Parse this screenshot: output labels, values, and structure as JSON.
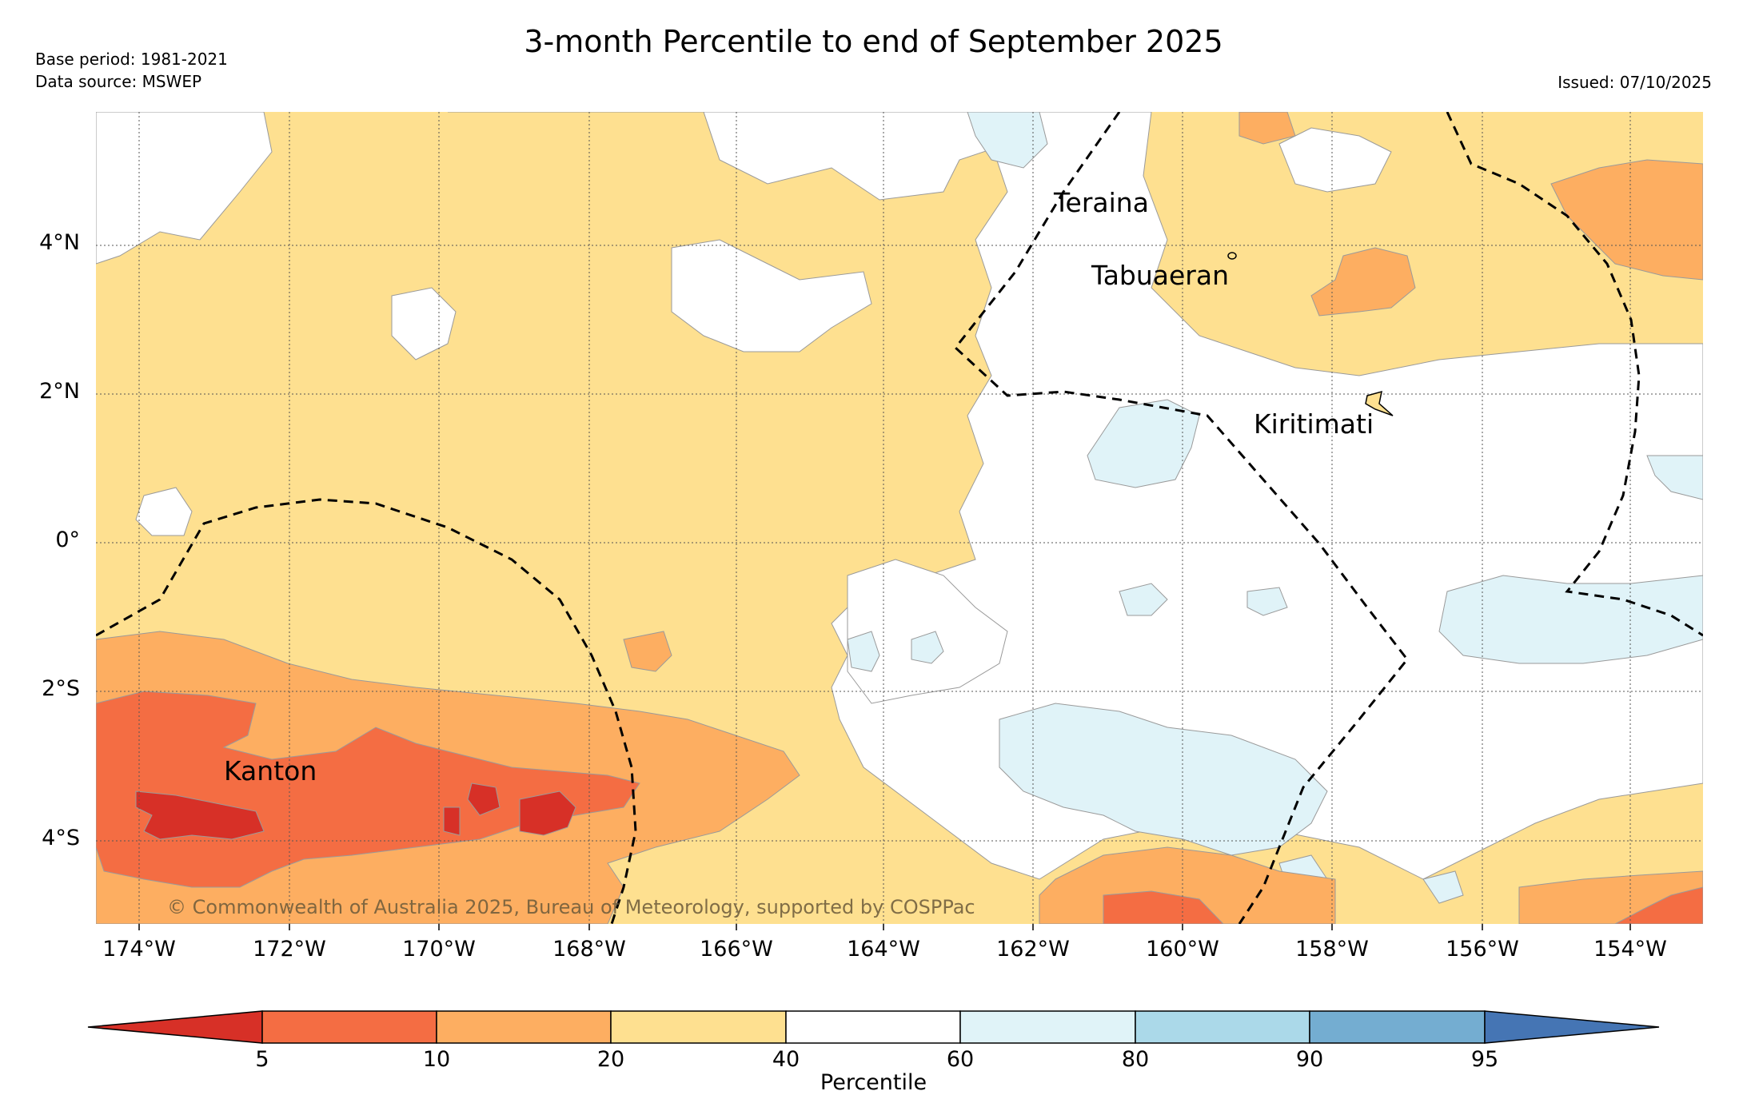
{
  "title": "3-month Percentile to end of September 2025",
  "meta": {
    "base_period": "Base period: 1981-2021",
    "data_source": "Data source: MSWEP",
    "issued": "Issued: 07/10/2025"
  },
  "axes": {
    "lat_labels": [
      "4°N",
      "2°N",
      "0°",
      "2°S",
      "4°S"
    ],
    "lon_labels": [
      "174°W",
      "172°W",
      "170°W",
      "168°W",
      "166°W",
      "164°W",
      "162°W",
      "160°W",
      "158°W",
      "156°W",
      "154°W"
    ]
  },
  "islands": [
    {
      "name": "Teraina"
    },
    {
      "name": "Tabuaeran"
    },
    {
      "name": "Kiritimati"
    },
    {
      "name": "Kanton"
    }
  ],
  "copyright": "© Commonwealth of Australia 2025, Bureau of Meteorology, supported by COSPPac",
  "colorbar": {
    "title": "Percentile",
    "ticks": [
      "5",
      "10",
      "20",
      "40",
      "60",
      "80",
      "90",
      "95"
    ],
    "colors": {
      "lt5": "#d73027",
      "p5_10": "#f46d43",
      "p10_20": "#fdae61",
      "p20_40": "#fee090",
      "p40_60": "#ffffff",
      "p60_80": "#e0f3f8",
      "p80_90": "#abd9e9",
      "p90_95": "#74add1",
      "gt95": "#4575b4"
    }
  }
}
